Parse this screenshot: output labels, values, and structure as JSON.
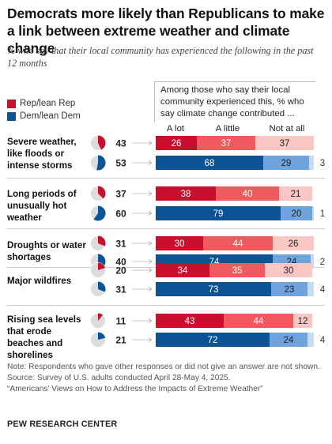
{
  "title": "Democrats more likely than Republicans to make a link between extreme weather and climate change",
  "subtitle": "% who say that their local community has experienced the following in the past 12 months",
  "legend": [
    {
      "name": "Rep/lean Rep",
      "color": "#c8102e"
    },
    {
      "name": "Dem/lean Dem",
      "color": "#0b5394"
    }
  ],
  "column_header": "Among those who say their local community experienced this, % who say climate change contributed ...",
  "columns": [
    "A lot",
    "A little",
    "Not at all"
  ],
  "colors": {
    "rep": [
      "#c8102e",
      "#ef5a5f",
      "#f9c6c4"
    ],
    "dem": [
      "#0b5394",
      "#6fa3de",
      "#c9dbf1"
    ],
    "pie_rest": "#dcdcdc"
  },
  "chart_data": {
    "type": "bar",
    "categories": [
      "Severe weather, like floods or intense storms",
      "Long periods of unusually hot weather",
      "Droughts or water shortages",
      "Major wildfires",
      "Rising sea levels that erode beaches and shorelines"
    ],
    "experienced": {
      "rep": [
        43,
        37,
        31,
        20,
        11
      ],
      "dem": [
        53,
        60,
        40,
        31,
        21
      ]
    },
    "series": [
      {
        "name": "Rep/lean Rep",
        "values": [
          [
            26,
            37,
            37
          ],
          [
            38,
            40,
            21
          ],
          [
            30,
            44,
            26
          ],
          [
            34,
            35,
            30
          ],
          [
            43,
            44,
            12
          ]
        ]
      },
      {
        "name": "Dem/lean Dem",
        "values": [
          [
            68,
            29,
            3
          ],
          [
            79,
            20,
            1
          ],
          [
            74,
            24,
            2
          ],
          [
            73,
            23,
            4
          ],
          [
            72,
            24,
            4
          ]
        ]
      }
    ],
    "segments": [
      "A lot",
      "A little",
      "Not at all"
    ],
    "xlim": [
      0,
      100
    ]
  },
  "notes": [
    "Note: Respondents who gave other responses or did not give an answer are not shown.",
    "Source: Survey of U.S. adults conducted April 28-May 4, 2025.",
    "“Americans’ Views on How to Address the Impacts of Extreme Weather”"
  ],
  "source": "PEW RESEARCH CENTER"
}
